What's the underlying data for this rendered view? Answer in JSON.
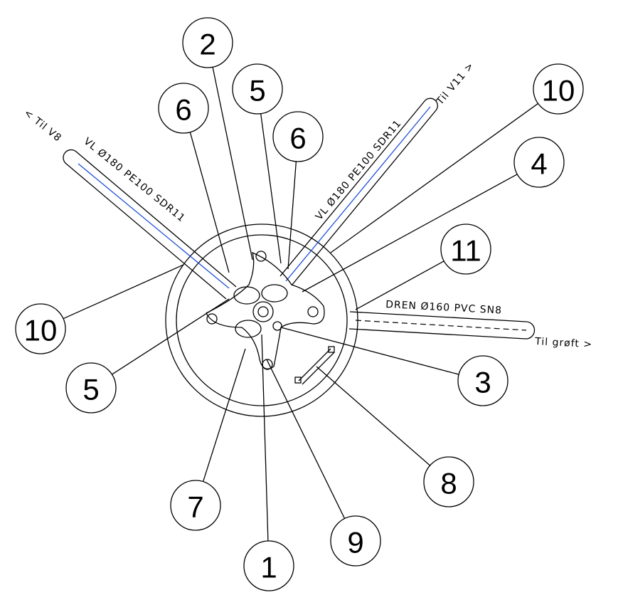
{
  "callouts": [
    {
      "label": "2"
    },
    {
      "label": "5"
    },
    {
      "label": "6"
    },
    {
      "label": "6"
    },
    {
      "label": "10"
    },
    {
      "label": "4"
    },
    {
      "label": "11"
    },
    {
      "label": "10"
    },
    {
      "label": "5"
    },
    {
      "label": "3"
    },
    {
      "label": "8"
    },
    {
      "label": "7"
    },
    {
      "label": "9"
    },
    {
      "label": "1"
    }
  ],
  "pipe_labels": [
    {
      "text": "VL Ø180 PE100 SDR11"
    },
    {
      "text": "< Til V8"
    },
    {
      "text": "VL Ø180 PE100 SDR11"
    },
    {
      "text": "Til V11 >"
    },
    {
      "text": "DREN Ø160 PVC SN8"
    },
    {
      "text": "Til grøft >"
    }
  ]
}
